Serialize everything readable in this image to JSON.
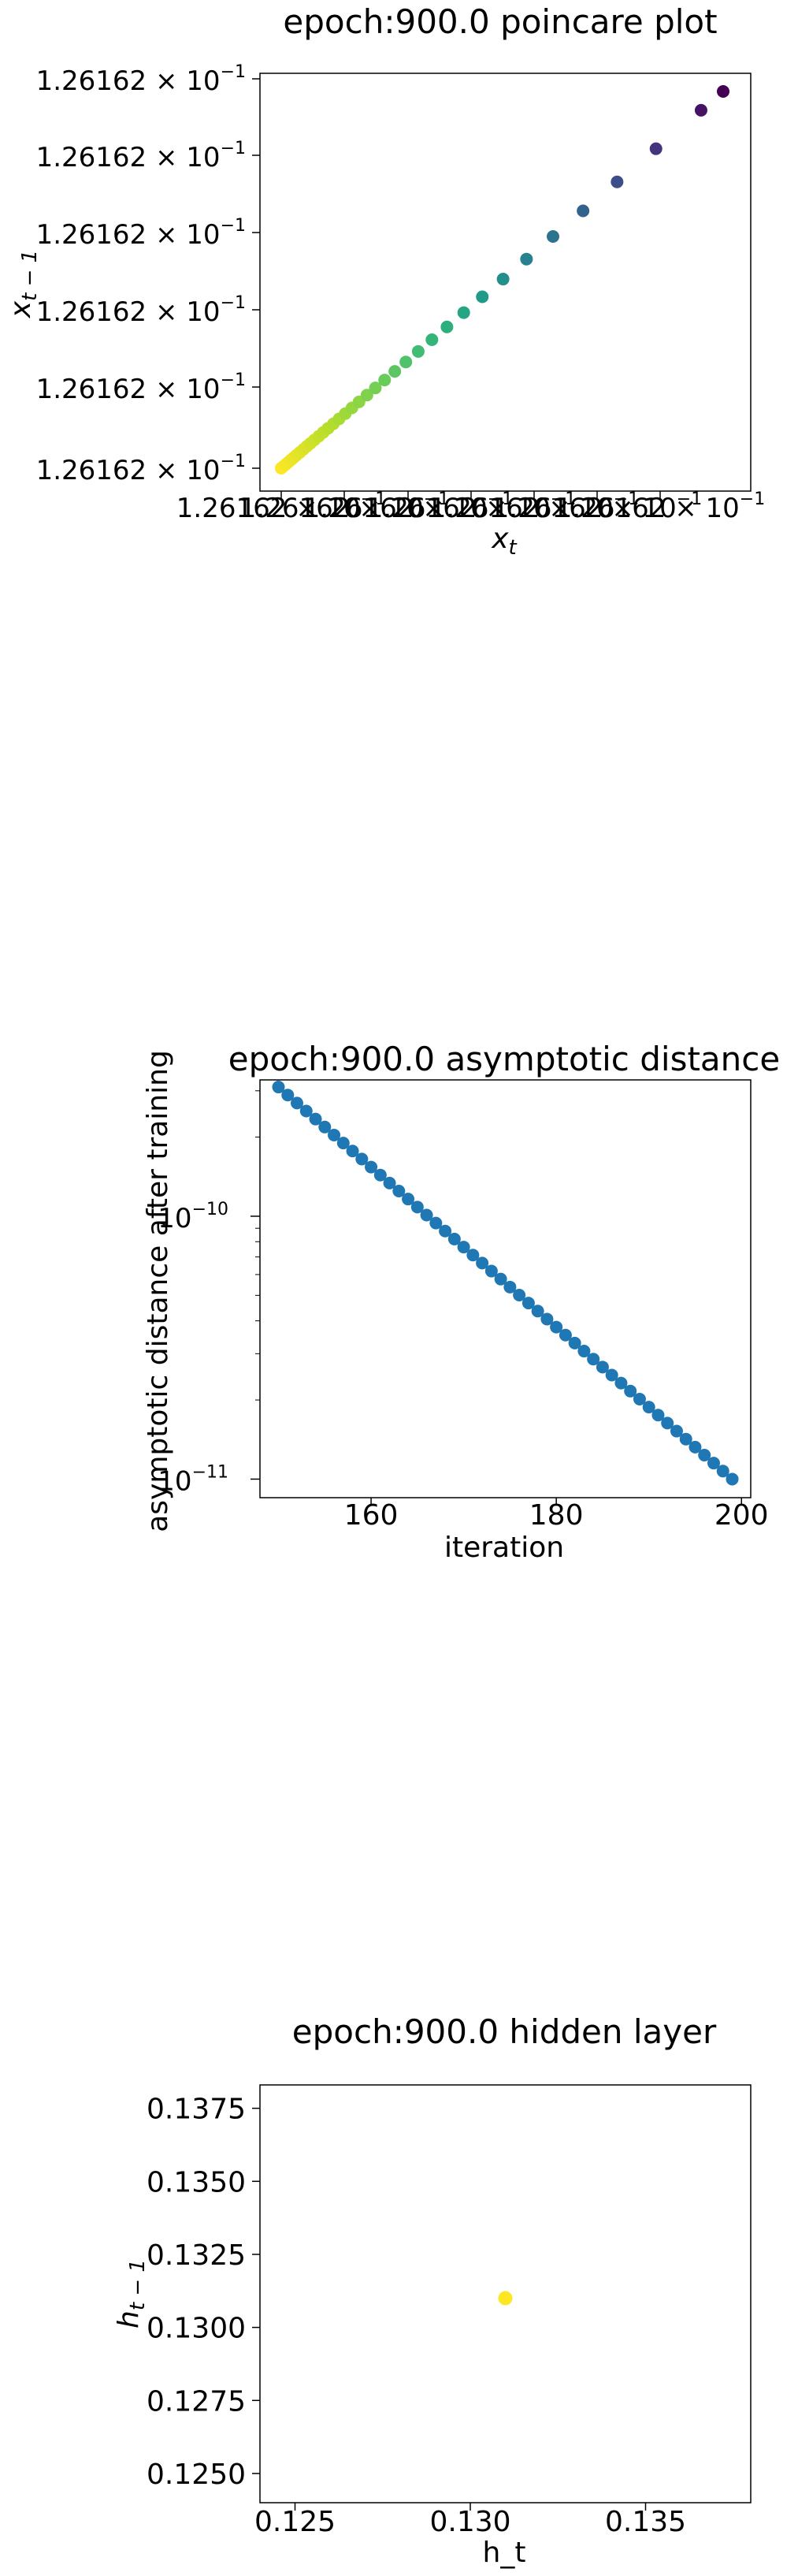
{
  "chart_data": [
    {
      "type": "scatter",
      "title": "epoch:900.0 poincare plot",
      "xlabel_base": "x",
      "xlabel_sub": "t",
      "ylabel_base": "x",
      "ylabel_sub": "t − 1",
      "colormap": "viridis",
      "x_tick_labels": [
        "1.26162 × 10",
        "1.26162 × 10",
        "1.26162 × 10",
        "1.26162 × 10",
        "1.26162 × 10",
        "1.26162 × 10",
        "1.26162 × 10"
      ],
      "y_tick_labels": [
        "1.26162 × 10",
        "1.26162 × 10",
        "1.26162 × 10",
        "1.26162 × 10",
        "1.26162 × 10",
        "1.26162 × 10"
      ],
      "tick_exponent": "−1",
      "series_positions": [
        0.0,
        0.005,
        0.01,
        0.016,
        0.022,
        0.028,
        0.035,
        0.042,
        0.05,
        0.058,
        0.066,
        0.075,
        0.085,
        0.095,
        0.106,
        0.118,
        0.131,
        0.145,
        0.16,
        0.176,
        0.194,
        0.213,
        0.234,
        0.257,
        0.282,
        0.31,
        0.341,
        0.375,
        0.413,
        0.455,
        0.502,
        0.555,
        0.615,
        0.683,
        0.76,
        0.848,
        0.95,
        1.0
      ]
    },
    {
      "type": "scatter",
      "title": "epoch:900.0 asymptotic distance",
      "xlabel": "iteration",
      "ylabel": "asymptotic distance after training",
      "yscale": "log",
      "xlim": [
        148,
        201
      ],
      "ylim": [
        8.5e-12,
        3.3e-10
      ],
      "x_ticks": [
        160,
        180,
        200
      ],
      "x_tick_labels": [
        "160",
        "180",
        "200"
      ],
      "y_ticks": [
        1e-10,
        1e-11
      ],
      "y_tick_labels": [
        {
          "base": "10",
          "exp": "−10"
        },
        {
          "base": "10",
          "exp": "−11"
        }
      ],
      "x": [
        150,
        151,
        152,
        153,
        154,
        155,
        156,
        157,
        158,
        159,
        160,
        161,
        162,
        163,
        164,
        165,
        166,
        167,
        168,
        169,
        170,
        171,
        172,
        173,
        174,
        175,
        176,
        177,
        178,
        179,
        180,
        181,
        182,
        183,
        184,
        185,
        186,
        187,
        188,
        189,
        190,
        191,
        192,
        193,
        194,
        195,
        196,
        197,
        198,
        199
      ],
      "y_start": 3.1e-10,
      "y_end": 1e-11,
      "color": "#1f77b4"
    },
    {
      "type": "scatter",
      "title": "epoch:900.0 hidden layer",
      "xlabel": "h_t",
      "ylabel_base": "h",
      "ylabel_sub": "t − 1",
      "xlim": [
        0.124,
        0.138
      ],
      "ylim": [
        0.124,
        0.1383
      ],
      "x_ticks": [
        0.125,
        0.13,
        0.135
      ],
      "x_tick_labels": [
        "0.125",
        "0.130",
        "0.135"
      ],
      "y_ticks": [
        0.125,
        0.1275,
        0.13,
        0.1325,
        0.135,
        0.1375
      ],
      "y_tick_labels": [
        "0.1250",
        "0.1275",
        "0.1300",
        "0.1325",
        "0.1350",
        "0.1375"
      ],
      "points": [
        {
          "x": 0.131,
          "y": 0.131
        }
      ],
      "color": "#fde725"
    }
  ]
}
